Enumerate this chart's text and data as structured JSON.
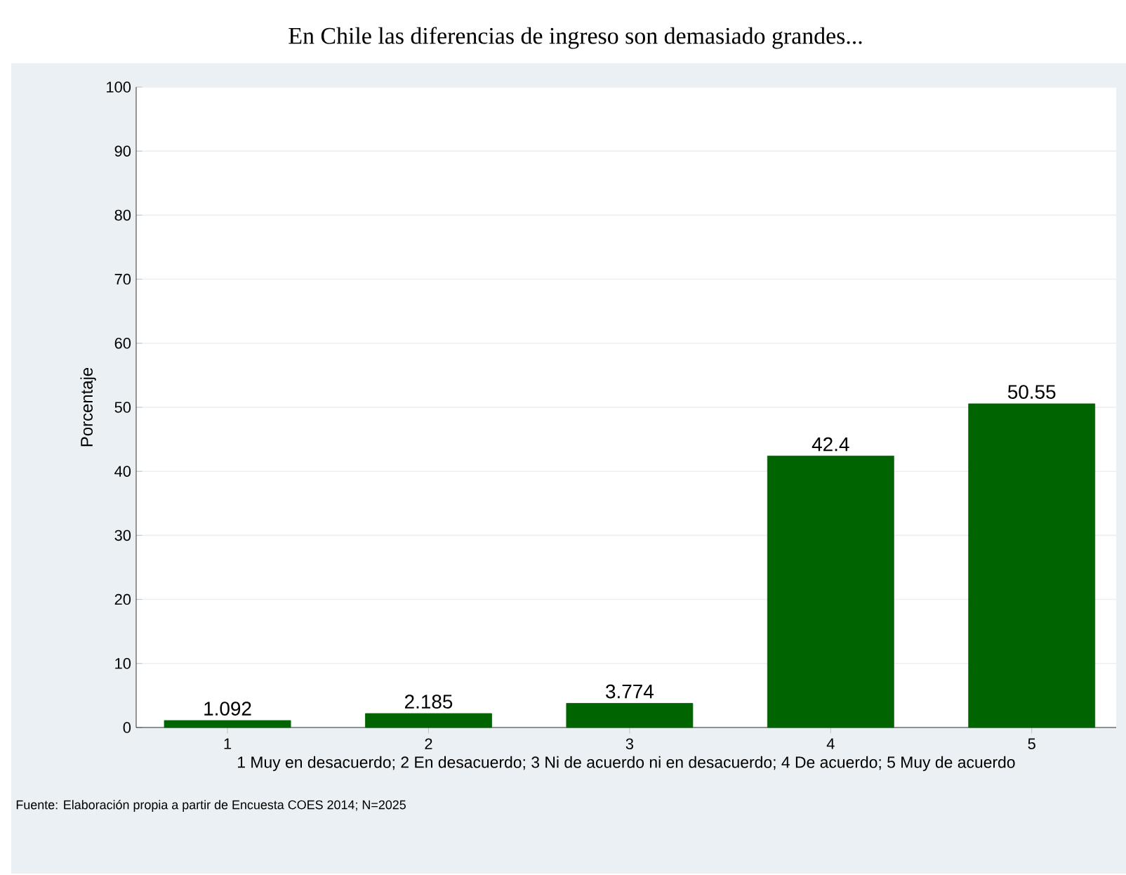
{
  "chart_data": {
    "type": "bar",
    "title": "En Chile las diferencias de ingreso son demasiado grandes...",
    "categories": [
      "1",
      "2",
      "3",
      "4",
      "5"
    ],
    "values": [
      1.092,
      2.185,
      3.774,
      42.4,
      50.55
    ],
    "color": "#006400",
    "ylabel": "Porcentaje",
    "xlabel": "1 Muy en desacuerdo; 2 En desacuerdo; 3 Ni de acuerdo ni en desacuerdo; 4 De acuerdo; 5 Muy de acuerdo",
    "annotations": [
      "Fuente: Elaboración propia a partir de Encuesta COES 2014; N=2025"
    ],
    "ylim": [
      0,
      100
    ],
    "yticks": [
      0,
      10,
      20,
      30,
      40,
      50,
      60,
      70,
      80,
      90,
      100
    ],
    "grid": "y",
    "data_labels": true
  }
}
